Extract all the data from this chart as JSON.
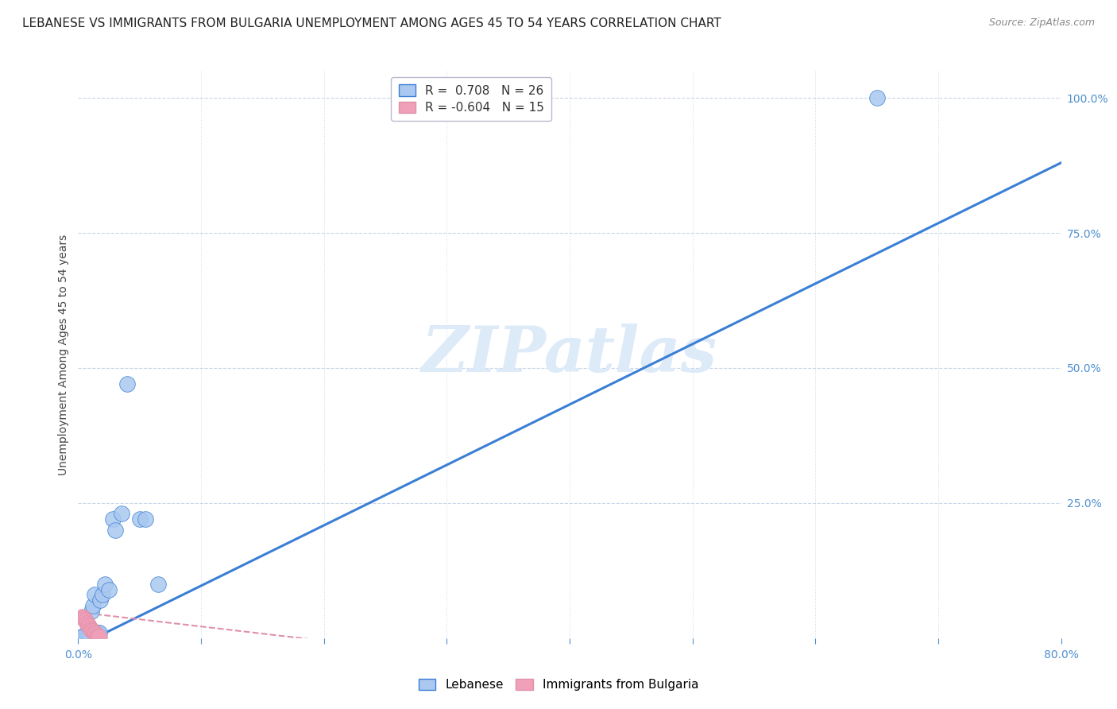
{
  "title": "LEBANESE VS IMMIGRANTS FROM BULGARIA UNEMPLOYMENT AMONG AGES 45 TO 54 YEARS CORRELATION CHART",
  "source": "Source: ZipAtlas.com",
  "ylabel": "Unemployment Among Ages 45 to 54 years",
  "xlim": [
    0.0,
    0.8
  ],
  "ylim": [
    0.0,
    1.05
  ],
  "yticks_right": [
    0.0,
    0.25,
    0.5,
    0.75,
    1.0
  ],
  "yticklabels_right": [
    "",
    "25.0%",
    "50.0%",
    "75.0%",
    "100.0%"
  ],
  "watermark": "ZIPatlas",
  "legend_r1": "R =  0.708   N = 26",
  "legend_r2": "R = -0.604   N = 15",
  "lebanese_x": [
    0.003,
    0.005,
    0.007,
    0.008,
    0.009,
    0.01,
    0.011,
    0.012,
    0.013,
    0.014,
    0.015,
    0.016,
    0.017,
    0.018,
    0.02,
    0.022,
    0.025,
    0.028,
    0.03,
    0.035,
    0.04,
    0.05,
    0.055,
    0.065,
    0.65,
    0.003
  ],
  "lebanese_y": [
    0.002,
    0.004,
    0.006,
    0.006,
    0.006,
    0.007,
    0.05,
    0.06,
    0.08,
    0.01,
    0.01,
    0.01,
    0.01,
    0.07,
    0.08,
    0.1,
    0.09,
    0.22,
    0.2,
    0.23,
    0.47,
    0.22,
    0.22,
    0.1,
    1.0,
    0.003
  ],
  "bulgaria_x": [
    0.003,
    0.004,
    0.005,
    0.006,
    0.007,
    0.008,
    0.009,
    0.01,
    0.011,
    0.012,
    0.013,
    0.014,
    0.015,
    0.016,
    0.017
  ],
  "bulgaria_y": [
    0.04,
    0.038,
    0.035,
    0.032,
    0.028,
    0.025,
    0.022,
    0.018,
    0.015,
    0.013,
    0.01,
    0.008,
    0.005,
    0.003,
    0.002
  ],
  "blue_trend_x0": 0.0,
  "blue_trend_y0": -0.015,
  "blue_trend_x1": 0.8,
  "blue_trend_y1": 0.88,
  "pink_trend_x0": 0.0,
  "pink_trend_y0": 0.048,
  "pink_trend_x1": 0.2,
  "pink_trend_y1": -0.005,
  "blue_line_color": "#3a7fd5",
  "pink_line_color": "#e090a8",
  "blue_scatter_color": "#aac8f0",
  "pink_scatter_color": "#f0a0b8",
  "scatter_size": 200,
  "grid_color": "#c8d4e8",
  "background_color": "#ffffff",
  "title_fontsize": 11,
  "axis_label_fontsize": 10,
  "tick_fontsize": 10,
  "tick_color": "#5090d0"
}
